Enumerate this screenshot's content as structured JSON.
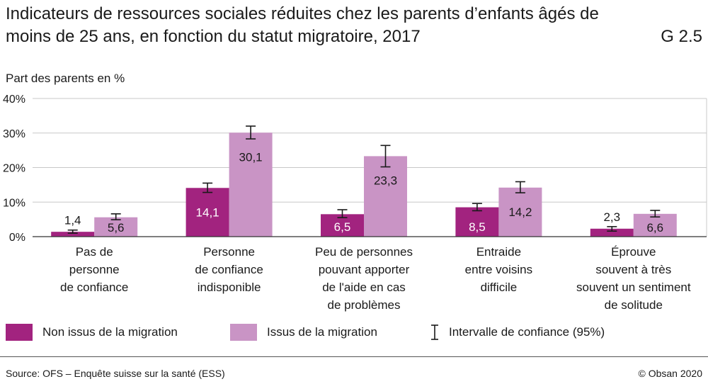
{
  "header": {
    "title": "Indicateurs de ressources sociales réduites chez les parents d’enfants âgés de moins de 25 ans, en fonction du statut migratoire, 2017",
    "code": "G 2.5"
  },
  "colors": {
    "non_migrant": "#a2237f",
    "migrant": "#c994c5",
    "gridline": "#c8c8c8",
    "axis": "#333333"
  },
  "chart_data": {
    "type": "bar",
    "title": "Indicateurs de ressources sociales réduites chez les parents d’enfants âgés de moins de 25 ans, en fonction du statut migratoire, 2017",
    "ylabel": "Part des parents en %",
    "xlabel": "",
    "ylim": [
      0,
      40
    ],
    "yticks": [
      0,
      10,
      20,
      30,
      40
    ],
    "ytick_labels": [
      "0%",
      "10%",
      "20%",
      "30%",
      "40%"
    ],
    "grid": true,
    "categories": [
      "Pas de\npersonne\nde confiance",
      "Personne\nde confiance\nindisponible",
      "Peu de personnes\npouvant apporter\nde l'aide en cas\nde problèmes",
      "Entraide\nentre voisins\ndifficile",
      "Éprouve\nsouvent à très\nsouvent un sentiment\nde solitude"
    ],
    "series": [
      {
        "name": "Non issus de la migration",
        "values": [
          1.4,
          14.1,
          6.5,
          8.5,
          2.3
        ],
        "labels": [
          "1,4",
          "14,1",
          "6,5",
          "8,5",
          "2,3"
        ],
        "ci_low": [
          1.0,
          12.8,
          5.5,
          7.5,
          1.6
        ],
        "ci_high": [
          1.9,
          15.5,
          7.8,
          9.6,
          2.9
        ]
      },
      {
        "name": "Issus de la migration",
        "values": [
          5.6,
          30.1,
          23.3,
          14.2,
          6.6
        ],
        "labels": [
          "5,6",
          "30,1",
          "23,3",
          "14,2",
          "6,6"
        ],
        "ci_low": [
          4.9,
          28.3,
          20.2,
          12.7,
          5.7
        ],
        "ci_high": [
          6.6,
          32.0,
          26.4,
          15.9,
          7.6
        ]
      }
    ],
    "legend": {
      "items": [
        "Non issus de la migration",
        "Issus de la migration",
        "Intervalle de confiance (95%)"
      ],
      "placement": "bottom"
    }
  },
  "footer": {
    "source": "Source: OFS – Enquête suisse sur la santé (ESS)",
    "copyright": "© Obsan 2020"
  }
}
